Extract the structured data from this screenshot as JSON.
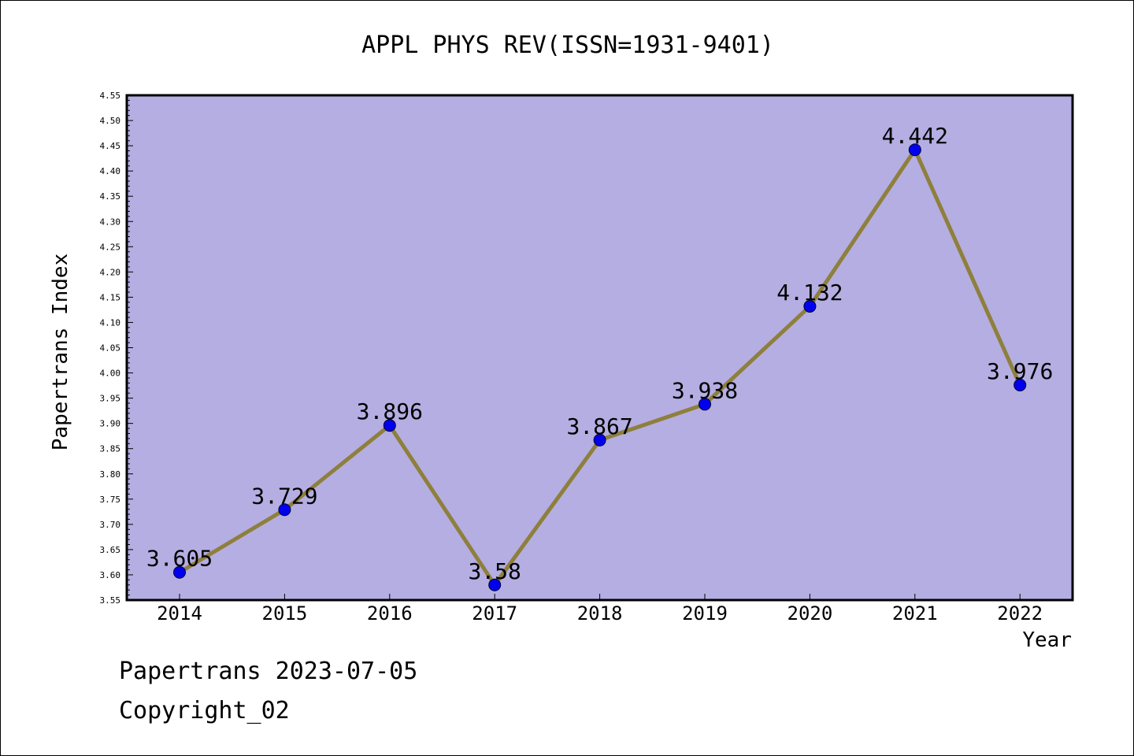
{
  "footer": {
    "date_line": "Papertrans 2023-07-05",
    "copyright_line": "Copyright_02"
  },
  "colors": {
    "plot_background": "#b4aee2",
    "line": "#8e7f3c",
    "marker": "#0000ee"
  },
  "chart_data": {
    "type": "line",
    "title": "APPL PHYS REV(ISSN=1931-9401)",
    "xlabel": "Year",
    "ylabel": "Papertrans Index",
    "categories": [
      "2014",
      "2015",
      "2016",
      "2017",
      "2018",
      "2019",
      "2020",
      "2021",
      "2022"
    ],
    "series": [
      {
        "values": [
          3.605,
          3.729,
          3.896,
          3.58,
          3.867,
          3.938,
          4.132,
          4.442,
          3.976
        ],
        "labels": [
          "3.605",
          "3.729",
          "3.896",
          "3.58",
          "3.867",
          "3.938",
          "4.132",
          "4.442",
          "3.976"
        ]
      }
    ],
    "ylim": [
      3.55,
      4.55
    ],
    "yticks": [
      "3.55",
      "3.60",
      "3.65",
      "3.70",
      "3.75",
      "3.80",
      "3.85",
      "3.90",
      "3.95",
      "4.00",
      "4.05",
      "4.10",
      "4.15",
      "4.20",
      "4.25",
      "4.30",
      "4.35",
      "4.40",
      "4.45",
      "4.50",
      "4.55"
    ],
    "grid": false,
    "legend": "none"
  }
}
